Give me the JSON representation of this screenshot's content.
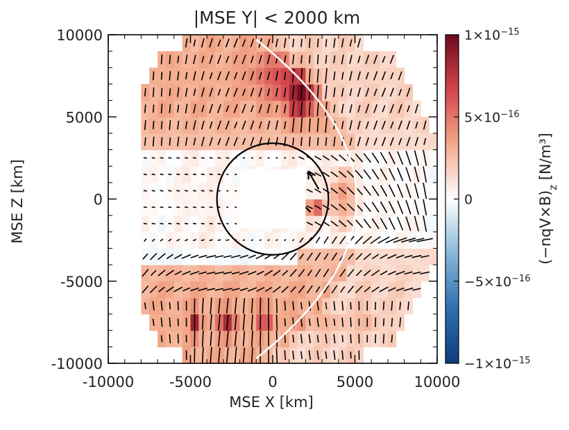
{
  "chart_data": {
    "type": "heatmap",
    "title": "|MSE Y| < 2000 km",
    "xlabel": "MSE X [km]",
    "ylabel": "MSE Z [km]",
    "xlim": [
      -10000,
      10000
    ],
    "ylim": [
      -10000,
      10000
    ],
    "xticks": [
      "-10000",
      "-5000",
      "0",
      "5000",
      "10000"
    ],
    "yticks": [
      "10000",
      "5000",
      "0",
      "-5000",
      "-10000"
    ],
    "xtick_values": [
      -10000,
      -5000,
      0,
      5000,
      10000
    ],
    "ytick_values": [
      10000,
      5000,
      0,
      -5000,
      -10000
    ],
    "colorbar": {
      "label": "(−nqV×B)z [N/m³]",
      "label_main": "(−nqV×B)",
      "label_sub": "z",
      "label_unit": " [N/m³]",
      "range": [
        -1e-15,
        1e-15
      ],
      "tick_values": [
        1e-15,
        5e-16,
        0,
        -5e-16,
        -1e-15
      ],
      "ticks": [
        {
          "mant": "1×10",
          "exp": "−15"
        },
        {
          "mant": "5×10",
          "exp": "−16"
        },
        {
          "mant": "0",
          "exp": ""
        },
        {
          "mant": "−5×10",
          "exp": "−16"
        },
        {
          "mant": "−1×10",
          "exp": "−15"
        }
      ],
      "colors": [
        "#0d3d7a",
        "#2f6fb0",
        "#86b7d9",
        "#ffffff",
        "#f3a889",
        "#d4454b",
        "#6e0a1c"
      ]
    },
    "planet_radius_km": 3390,
    "mask_rect_km": [
      -2000,
      -1800,
      2000,
      1800
    ],
    "bow_shock": {
      "vertex_x_km": 5100,
      "top_x_km": -1000,
      "top_z_km": 9700
    },
    "grid": {
      "dx_km": 500,
      "dz_km": 1000,
      "x_min": -8000,
      "x_max": 10000,
      "z_min": -9500,
      "z_max": 9500
    }
  }
}
